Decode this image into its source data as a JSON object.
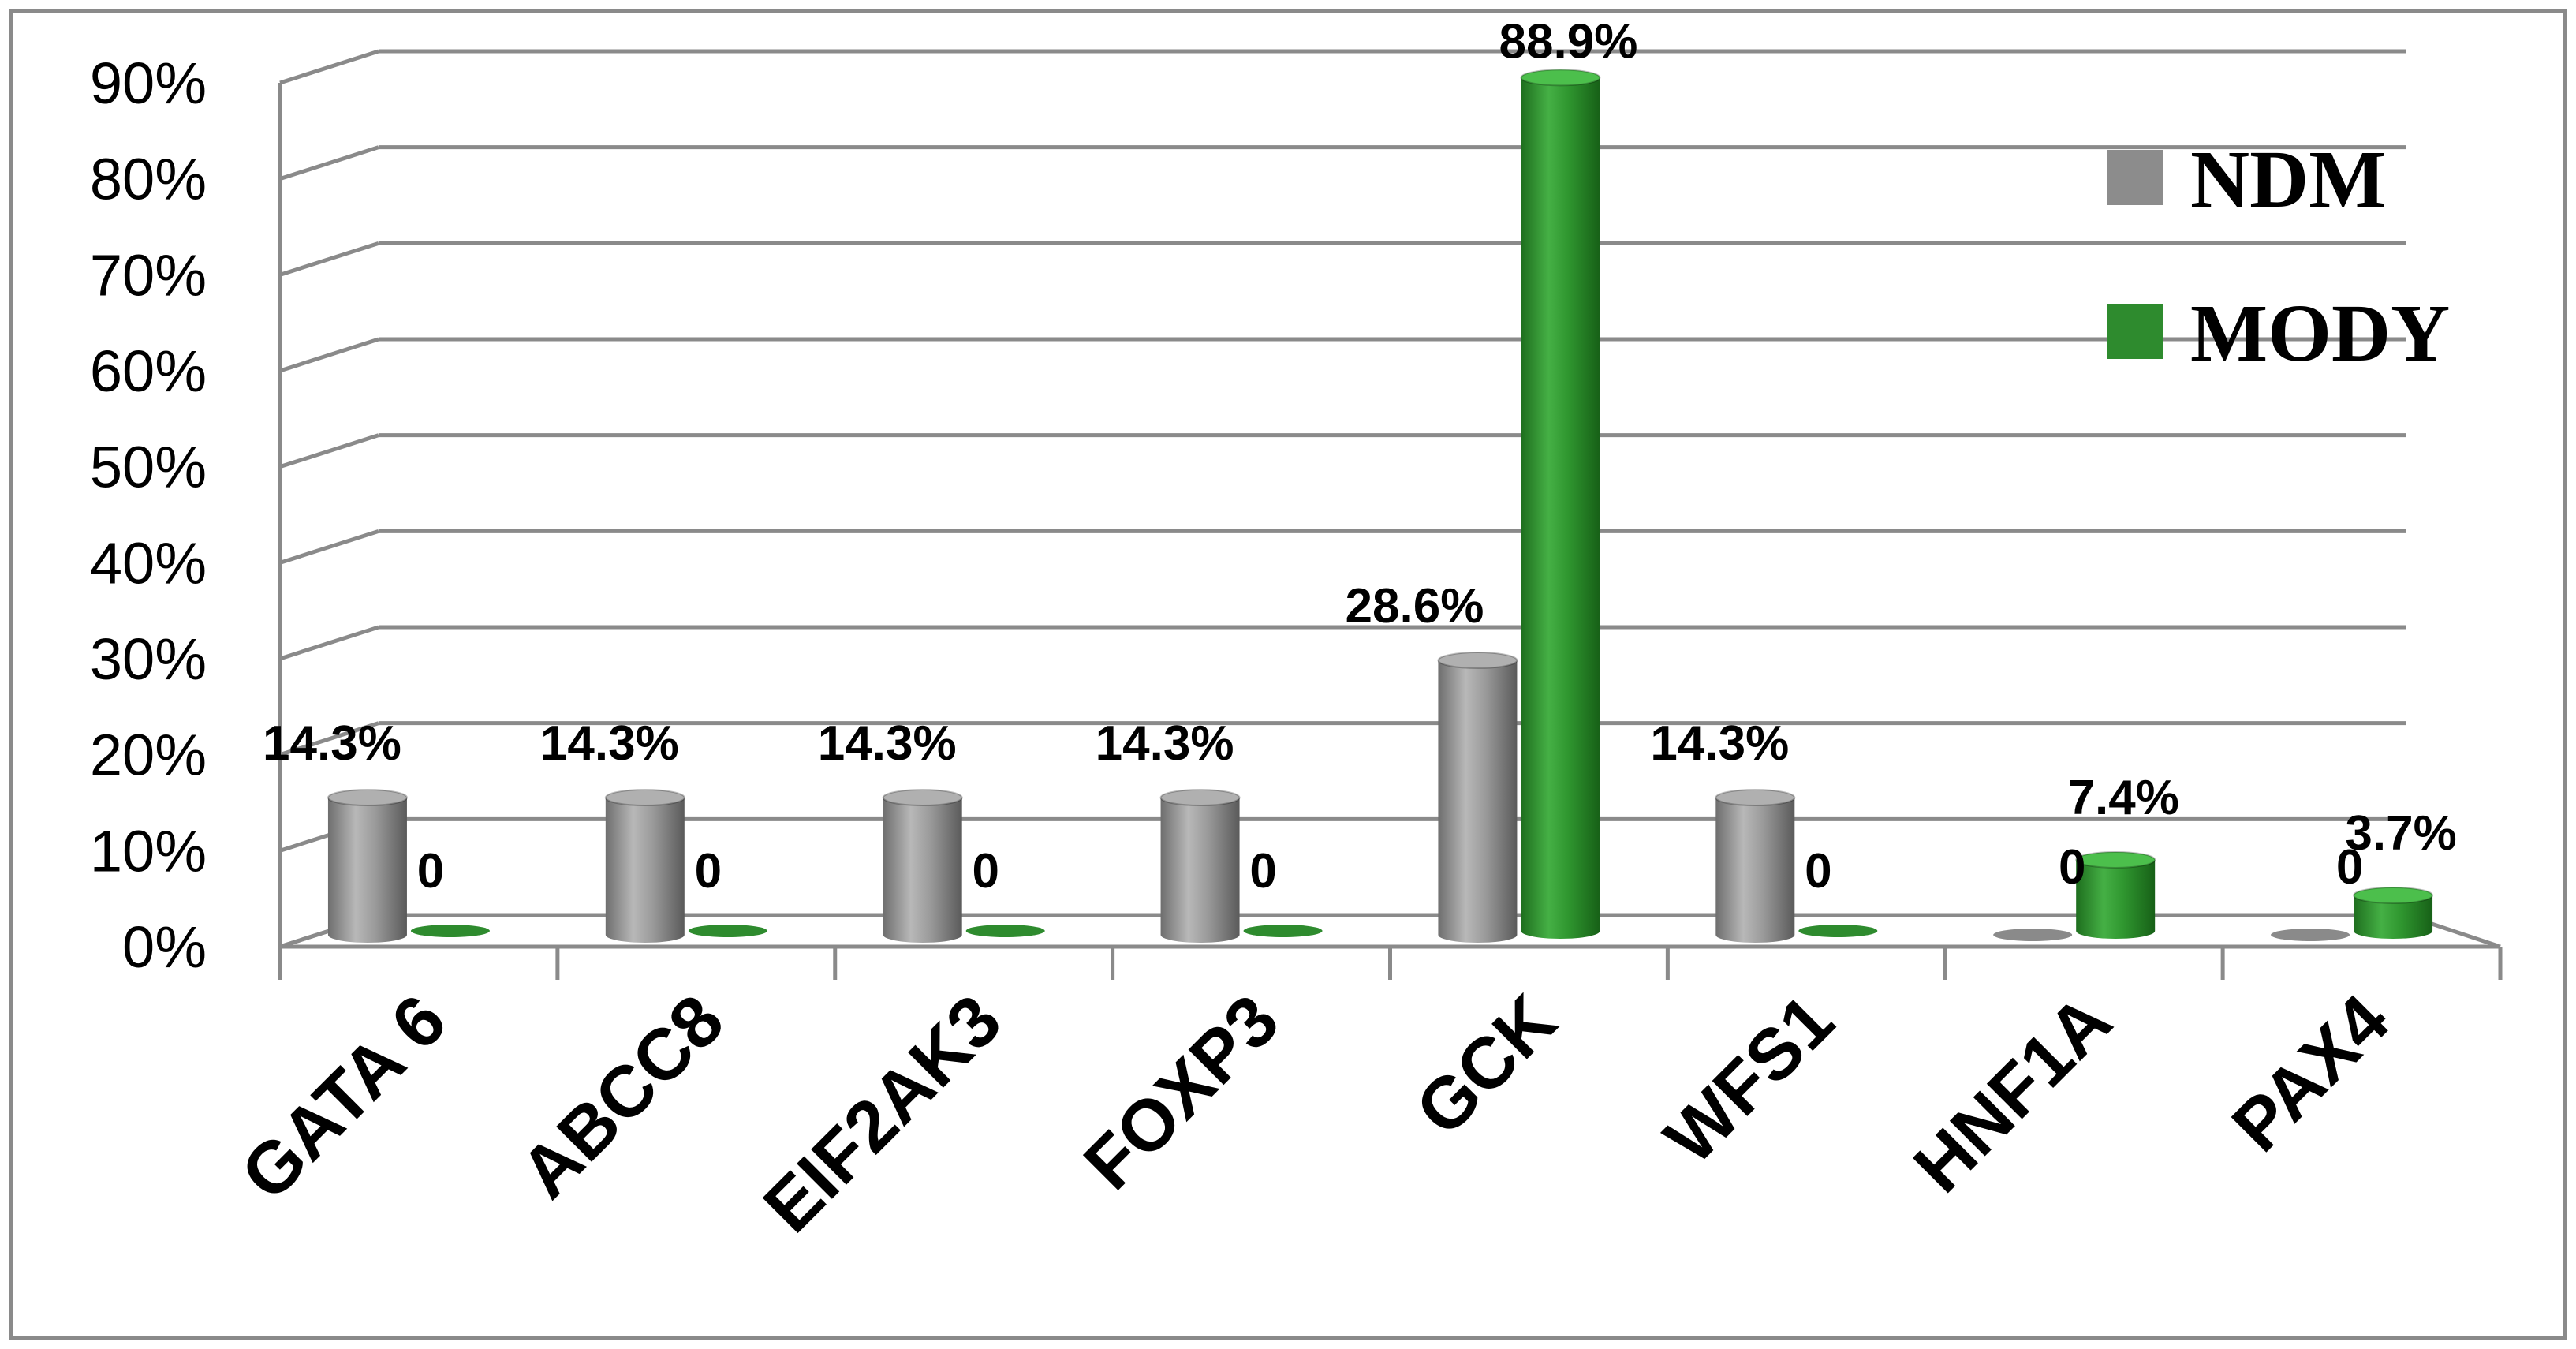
{
  "chart_data": {
    "type": "bar",
    "style": "3d-cylinder",
    "categories": [
      "GATA 6",
      "ABCC8",
      "EIF2AK3",
      "FOXP3",
      "GCK",
      "WFS1",
      "HNF1A",
      "PAX4"
    ],
    "series": [
      {
        "name": "NDM",
        "color": "#8c8c8c",
        "values": [
          14.3,
          14.3,
          14.3,
          14.3,
          28.6,
          14.3,
          0,
          0
        ],
        "labels": [
          "14.3%",
          "14.3%",
          "14.3%",
          "14.3%",
          "28.6%",
          "14.3%",
          "0",
          "0"
        ]
      },
      {
        "name": "MODY",
        "color": "#2e8b2e",
        "values": [
          0,
          0,
          0,
          0,
          88.9,
          0,
          7.4,
          3.7
        ],
        "labels": [
          "0",
          "0",
          "0",
          "0",
          "88.9%",
          "0",
          "7.4%",
          "3.7%"
        ]
      }
    ],
    "yticks": [
      "0%",
      "10%",
      "20%",
      "30%",
      "40%",
      "50%",
      "60%",
      "70%",
      "80%",
      "90%"
    ],
    "ylim": [
      0,
      90
    ],
    "grid": true,
    "legend": "top-right"
  }
}
